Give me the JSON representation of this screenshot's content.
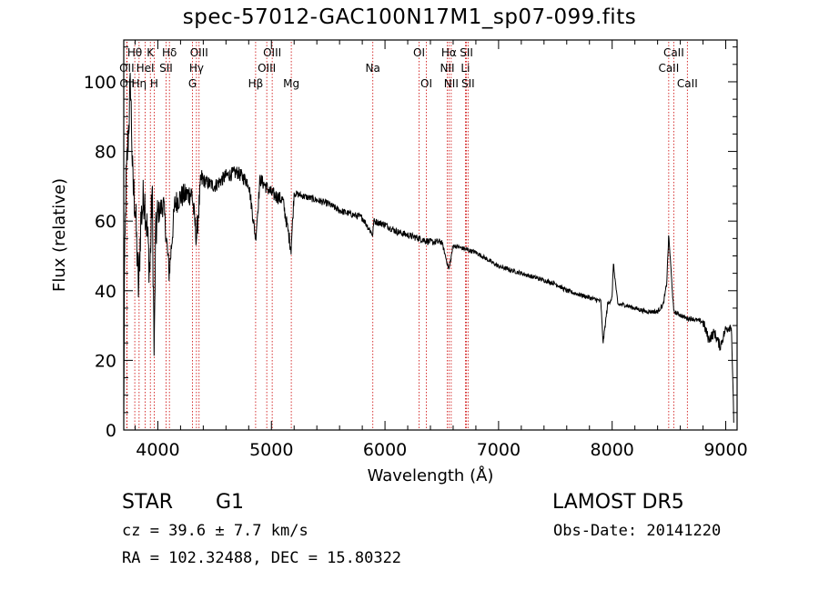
{
  "chart_data": {
    "type": "line",
    "title": "spec-57012-GAC100N17M1_sp07-099.fits",
    "xlabel": "Wavelength (Å)",
    "ylabel": "Flux (relative)",
    "xlim": [
      3700,
      9100
    ],
    "ylim": [
      0,
      112
    ],
    "xticks": [
      4000,
      5000,
      6000,
      7000,
      8000,
      9000
    ],
    "xtick_labels": [
      "4000",
      "5000",
      "6000",
      "7000",
      "8000",
      "9000"
    ],
    "yticks": [
      0,
      20,
      40,
      60,
      80,
      100
    ],
    "ytick_labels": [
      "0",
      "20",
      "40",
      "60",
      "80",
      "100"
    ],
    "line_color": "#000000",
    "marker_color": "#cc0000",
    "spectrum_keypoints": [
      [
        3700,
        2
      ],
      [
        3705,
        40
      ],
      [
        3720,
        70
      ],
      [
        3740,
        85
      ],
      [
        3760,
        100
      ],
      [
        3780,
        70
      ],
      [
        3800,
        65
      ],
      [
        3830,
        40
      ],
      [
        3850,
        60
      ],
      [
        3880,
        68
      ],
      [
        3900,
        60
      ],
      [
        3930,
        45
      ],
      [
        3950,
        70
      ],
      [
        3968,
        20
      ],
      [
        3980,
        55
      ],
      [
        4000,
        62
      ],
      [
        4050,
        65
      ],
      [
        4100,
        45
      ],
      [
        4150,
        65
      ],
      [
        4200,
        67
      ],
      [
        4300,
        68
      ],
      [
        4340,
        55
      ],
      [
        4380,
        72
      ],
      [
        4500,
        70
      ],
      [
        4600,
        73
      ],
      [
        4700,
        74
      ],
      [
        4800,
        71
      ],
      [
        4861,
        55
      ],
      [
        4900,
        72
      ],
      [
        5000,
        68
      ],
      [
        5100,
        66
      ],
      [
        5173,
        52
      ],
      [
        5200,
        68
      ],
      [
        5300,
        67
      ],
      [
        5400,
        66
      ],
      [
        5500,
        65
      ],
      [
        5600,
        63
      ],
      [
        5700,
        62
      ],
      [
        5800,
        61
      ],
      [
        5900,
        60
      ],
      [
        5893,
        56
      ],
      [
        6000,
        59
      ],
      [
        6100,
        57
      ],
      [
        6200,
        56
      ],
      [
        6300,
        55
      ],
      [
        6400,
        54
      ],
      [
        6500,
        54
      ],
      [
        6563,
        46
      ],
      [
        6600,
        53
      ],
      [
        6700,
        52
      ],
      [
        6800,
        51
      ],
      [
        6900,
        49
      ],
      [
        7000,
        47
      ],
      [
        7100,
        46
      ],
      [
        7200,
        45
      ],
      [
        7300,
        44
      ],
      [
        7400,
        43
      ],
      [
        7500,
        42
      ],
      [
        7600,
        40
      ],
      [
        7700,
        39
      ],
      [
        7800,
        38
      ],
      [
        7900,
        37
      ],
      [
        7920,
        25
      ],
      [
        7960,
        36
      ],
      [
        8000,
        38
      ],
      [
        8010,
        48
      ],
      [
        8050,
        36
      ],
      [
        8100,
        36
      ],
      [
        8200,
        35
      ],
      [
        8300,
        34
      ],
      [
        8400,
        34
      ],
      [
        8450,
        36
      ],
      [
        8480,
        42
      ],
      [
        8498,
        56
      ],
      [
        8520,
        45
      ],
      [
        8542,
        34
      ],
      [
        8600,
        33
      ],
      [
        8662,
        32
      ],
      [
        8700,
        32
      ],
      [
        8800,
        31
      ],
      [
        8850,
        26
      ],
      [
        8900,
        28
      ],
      [
        8950,
        24
      ],
      [
        9000,
        29
      ],
      [
        9050,
        30
      ],
      [
        9070,
        3
      ]
    ],
    "lines": [
      {
        "label": "Hθ",
        "x": 3797,
        "row": 0
      },
      {
        "label": "OII",
        "x": 3727,
        "row": 1
      },
      {
        "label": "OII",
        "x": 3729,
        "row": 2
      },
      {
        "label": "Hη",
        "x": 3835,
        "row": 2
      },
      {
        "label": "K",
        "x": 3934,
        "row": 0
      },
      {
        "label": "HeI",
        "x": 3889,
        "row": 1
      },
      {
        "label": "H",
        "x": 3968,
        "row": 2
      },
      {
        "label": "Hδ",
        "x": 4102,
        "row": 0
      },
      {
        "label": "SII",
        "x": 4072,
        "row": 1
      },
      {
        "label": "OIII",
        "x": 4363,
        "row": 0
      },
      {
        "label": "Hγ",
        "x": 4340,
        "row": 1
      },
      {
        "label": "G",
        "x": 4305,
        "row": 2
      },
      {
        "label": "OIII",
        "x": 5007,
        "row": 0
      },
      {
        "label": "OIII",
        "x": 4959,
        "row": 1
      },
      {
        "label": "Hβ",
        "x": 4861,
        "row": 2
      },
      {
        "label": "Mg",
        "x": 5175,
        "row": 2
      },
      {
        "label": "Na",
        "x": 5893,
        "row": 1
      },
      {
        "label": "OI",
        "x": 6300,
        "row": 0
      },
      {
        "label": "OI",
        "x": 6364,
        "row": 2
      },
      {
        "label": "Hα",
        "x": 6563,
        "row": 0
      },
      {
        "label": "SII",
        "x": 6717,
        "row": 0
      },
      {
        "label": "NII",
        "x": 6548,
        "row": 1
      },
      {
        "label": "Li",
        "x": 6708,
        "row": 1
      },
      {
        "label": "NII",
        "x": 6583,
        "row": 2
      },
      {
        "label": "SII",
        "x": 6731,
        "row": 2
      },
      {
        "label": "CaII",
        "x": 8542,
        "row": 0
      },
      {
        "label": "CaII",
        "x": 8498,
        "row": 1
      },
      {
        "label": "CaII",
        "x": 8662,
        "row": 2
      }
    ]
  },
  "info": {
    "object_class": "STAR",
    "subclass": "G1",
    "survey": "LAMOST DR5",
    "redshift": "cz = 39.6 ± 7.7 km/s",
    "obs_date": "Obs-Date: 20141220",
    "coords": "RA = 102.32488, DEC =  15.80322"
  }
}
